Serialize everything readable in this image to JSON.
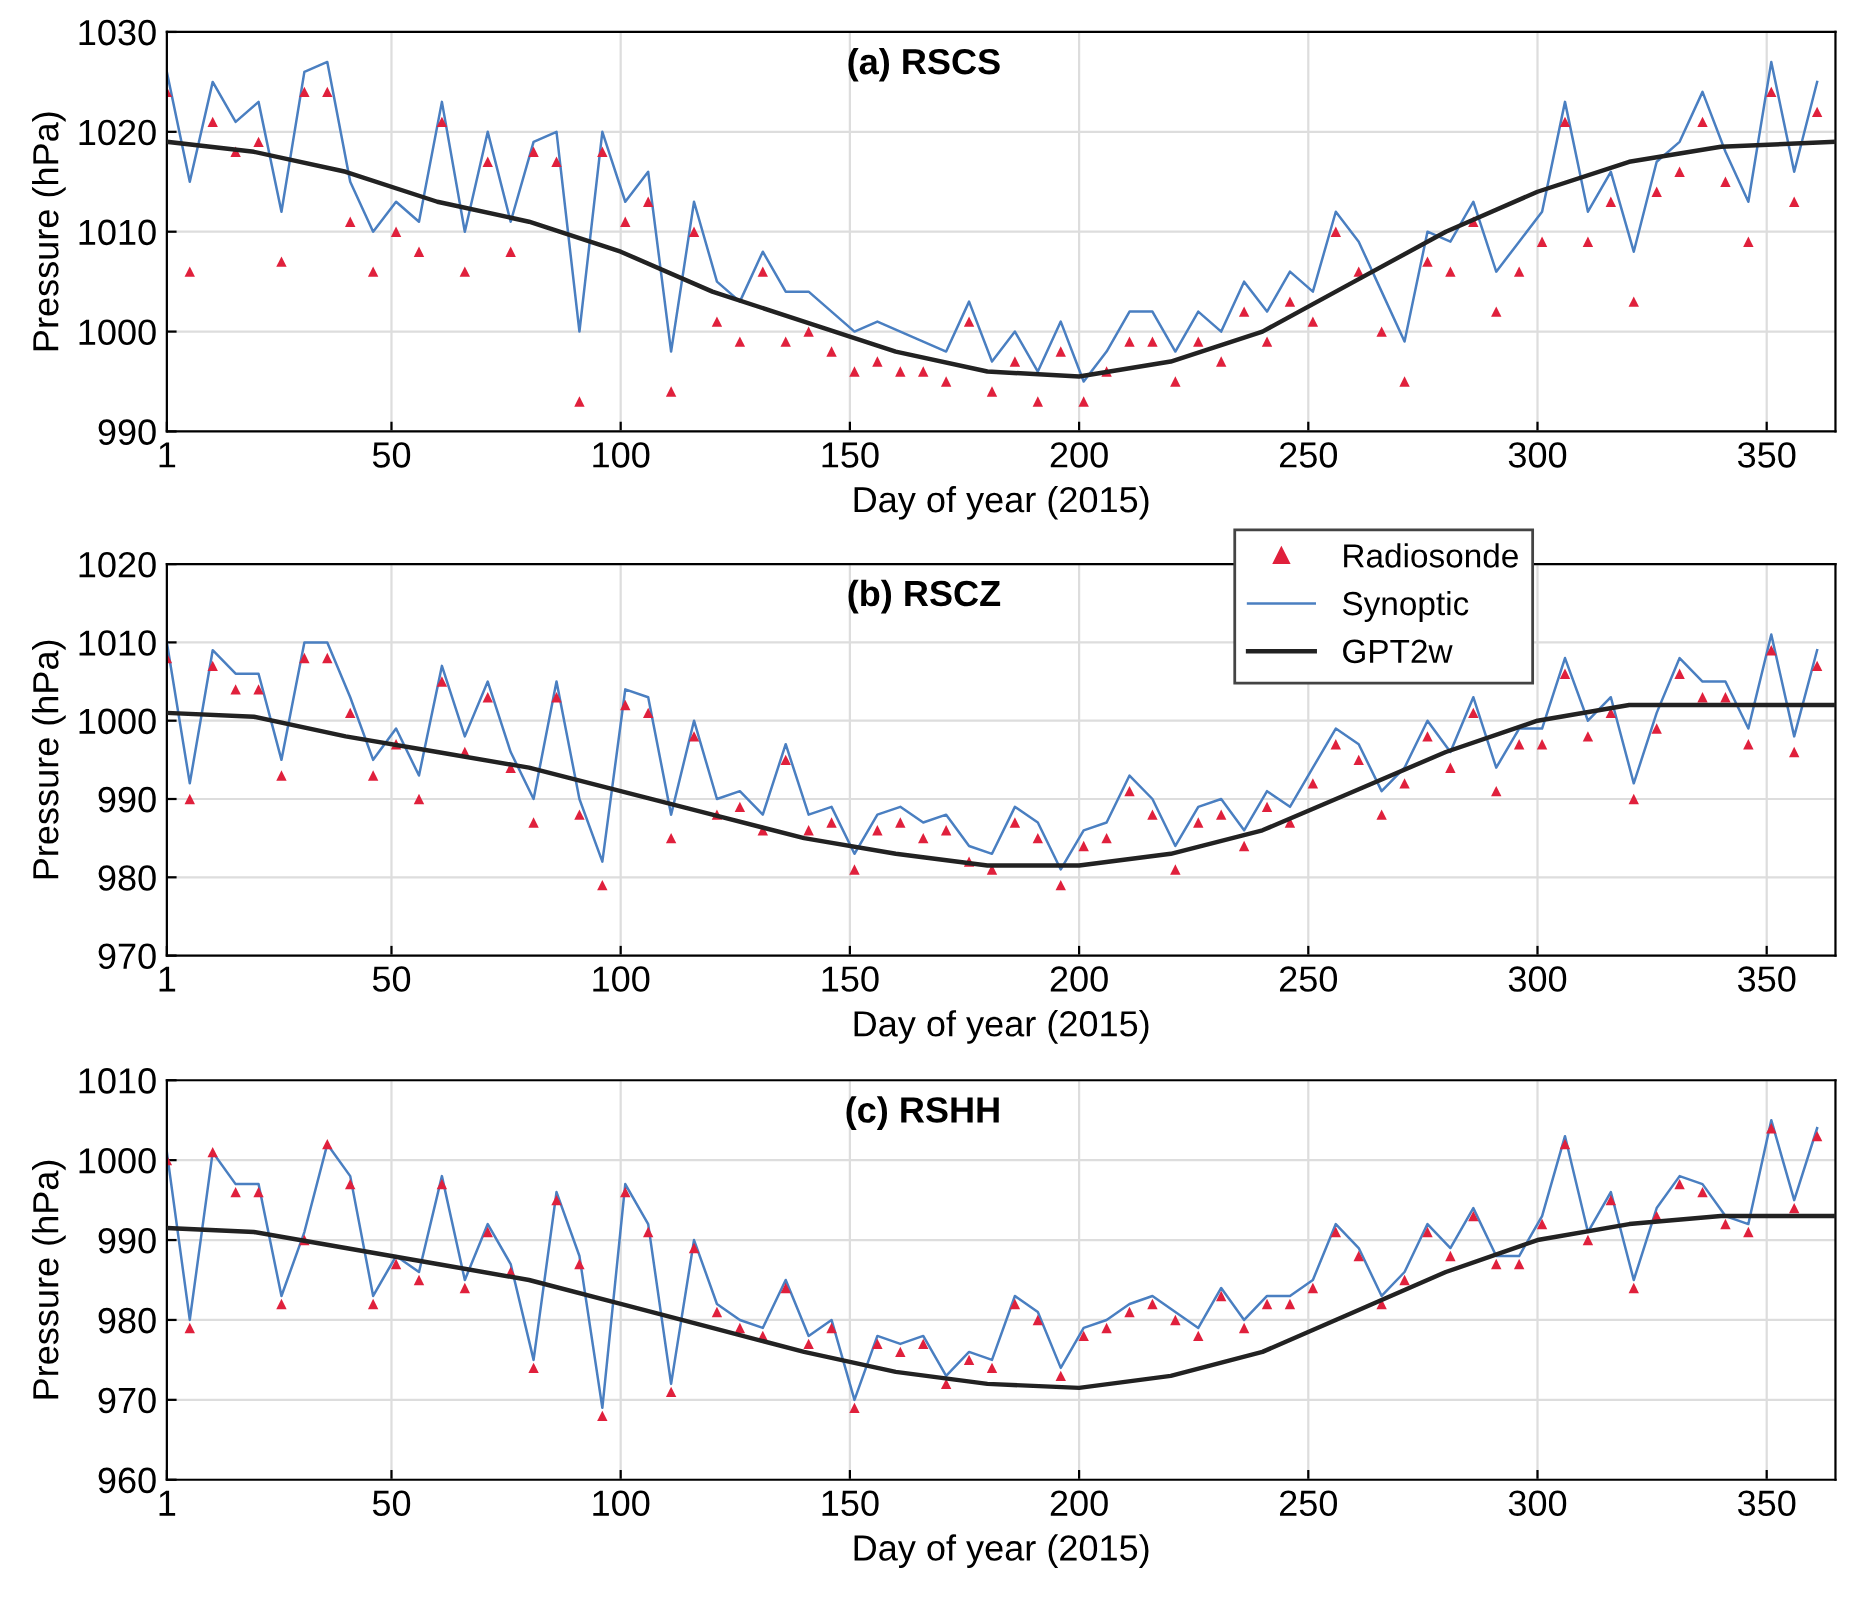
{
  "chart_data": [
    {
      "type": "line",
      "title": "(a) RSCS",
      "xlabel": "Day of year (2015)",
      "ylabel": "Pressure (hPa)",
      "x": [
        1,
        6,
        11,
        16,
        21,
        26,
        31,
        36,
        41,
        46,
        51,
        56,
        61,
        66,
        71,
        76,
        81,
        86,
        91,
        96,
        101,
        106,
        111,
        116,
        121,
        126,
        131,
        136,
        141,
        146,
        151,
        156,
        161,
        166,
        171,
        176,
        181,
        186,
        191,
        196,
        201,
        206,
        211,
        216,
        221,
        226,
        231,
        236,
        241,
        246,
        251,
        256,
        261,
        266,
        271,
        276,
        281,
        286,
        291,
        296,
        301,
        306,
        311,
        316,
        321,
        326,
        331,
        336,
        341,
        346,
        351,
        356,
        361
      ],
      "xlim": [
        1,
        365
      ],
      "xticks": [
        1,
        50,
        100,
        150,
        200,
        250,
        300,
        350
      ],
      "ylim": [
        990,
        1030
      ],
      "yticks": [
        990,
        1000,
        1010,
        1020,
        1030
      ],
      "grid": true,
      "series": [
        {
          "type": "line",
          "color": "#4a7fc1",
          "line_style": "solid",
          "values": [
            1026,
            1015,
            1025,
            1021,
            1023,
            1012,
            1026,
            1027,
            1015,
            1010,
            1013,
            1011,
            1023,
            1010,
            1020,
            1011,
            1019,
            1020,
            1000,
            1020,
            1013,
            1016,
            998,
            1013,
            1005,
            1003,
            1008,
            1004,
            1004,
            1002,
            1000,
            1001,
            1000,
            999,
            998,
            1003,
            997,
            1000,
            996,
            1001,
            995,
            998,
            1002,
            1002,
            998,
            1002,
            1000,
            1005,
            1002,
            1006,
            1004,
            1012,
            1009,
            1004,
            999,
            1010,
            1009,
            1013,
            1006,
            1009,
            1012,
            1023,
            1012,
            1016,
            1008,
            1017,
            1019,
            1024,
            1018,
            1013,
            1027,
            1016,
            1025
          ]
        },
        {
          "type": "line",
          "color": "#222222",
          "line_style": "solid",
          "x": [
            1,
            20,
            40,
            60,
            80,
            100,
            120,
            140,
            160,
            180,
            200,
            220,
            240,
            260,
            280,
            300,
            320,
            340,
            365
          ],
          "values": [
            1019,
            1018,
            1016,
            1013,
            1011,
            1008,
            1004,
            1001,
            998,
            996,
            995.5,
            997,
            1000,
            1005,
            1010,
            1014,
            1017,
            1018.5,
            1019
          ]
        },
        {
          "type": "scatter",
          "color": "#e0203c",
          "marker": "triangle",
          "values": [
            1024,
            1006,
            1021,
            1018,
            1019,
            1007,
            1024,
            1024,
            1011,
            1006,
            1010,
            1008,
            1021,
            1006,
            1017,
            1008,
            1018,
            1017,
            993,
            1018,
            1011,
            1013,
            994,
            1010,
            1001,
            999,
            1006,
            999,
            1000,
            998,
            996,
            997,
            996,
            996,
            995,
            1001,
            994,
            997,
            993,
            998,
            993,
            996,
            999,
            999,
            995,
            999,
            997,
            1002,
            999,
            1003,
            1001,
            1010,
            1006,
            1000,
            995,
            1007,
            1006,
            1011,
            1002,
            1006,
            1009,
            1021,
            1009,
            1013,
            1003,
            1014,
            1016,
            1021,
            1015,
            1009,
            1024,
            1013,
            1022
          ]
        }
      ]
    },
    {
      "type": "line",
      "title": "(b) RSCZ",
      "xlabel": "Day of year (2015)",
      "ylabel": "Pressure (hPa)",
      "x": [
        1,
        6,
        11,
        16,
        21,
        26,
        31,
        36,
        41,
        46,
        51,
        56,
        61,
        66,
        71,
        76,
        81,
        86,
        91,
        96,
        101,
        106,
        111,
        116,
        121,
        126,
        131,
        136,
        141,
        146,
        151,
        156,
        161,
        166,
        171,
        176,
        181,
        186,
        191,
        196,
        201,
        206,
        211,
        216,
        221,
        226,
        231,
        236,
        241,
        246,
        251,
        256,
        261,
        266,
        271,
        276,
        281,
        286,
        291,
        296,
        301,
        306,
        311,
        316,
        321,
        326,
        331,
        336,
        341,
        346,
        351,
        356,
        361
      ],
      "xlim": [
        1,
        365
      ],
      "xticks": [
        1,
        50,
        100,
        150,
        200,
        250,
        300,
        350
      ],
      "ylim": [
        970,
        1020
      ],
      "yticks": [
        970,
        980,
        990,
        1000,
        1010,
        1020
      ],
      "grid": true,
      "legend": "top",
      "series": [
        {
          "type": "scatter",
          "name": "Radiosonde",
          "color": "#e0203c",
          "marker": "triangle",
          "values": [
            1008,
            990,
            1007,
            1004,
            1004,
            993,
            1008,
            1008,
            1001,
            993,
            997,
            990,
            1005,
            996,
            1003,
            994,
            987,
            1003,
            988,
            979,
            1002,
            1001,
            985,
            998,
            988,
            989,
            986,
            995,
            986,
            987,
            981,
            986,
            987,
            985,
            986,
            982,
            981,
            987,
            985,
            979,
            984,
            985,
            991,
            988,
            981,
            987,
            988,
            984,
            989,
            987,
            992,
            997,
            995,
            988,
            992,
            998,
            994,
            1001,
            991,
            997,
            997,
            1006,
            998,
            1001,
            990,
            999,
            1006,
            1003,
            1003,
            997,
            1009,
            996,
            1007
          ]
        },
        {
          "type": "line",
          "name": "Synoptic",
          "color": "#4a7fc1",
          "line_style": "solid",
          "values": [
            1010,
            992,
            1009,
            1006,
            1006,
            995,
            1010,
            1010,
            1003,
            995,
            999,
            993,
            1007,
            998,
            1005,
            996,
            990,
            1005,
            990,
            982,
            1004,
            1003,
            988,
            1000,
            990,
            991,
            988,
            997,
            988,
            989,
            983,
            988,
            989,
            987,
            988,
            984,
            983,
            989,
            987,
            981,
            986,
            987,
            993,
            990,
            984,
            989,
            990,
            986,
            991,
            989,
            994,
            999,
            997,
            991,
            994,
            1000,
            996,
            1003,
            994,
            999,
            999,
            1008,
            1000,
            1003,
            992,
            1001,
            1008,
            1005,
            1005,
            999,
            1011,
            998,
            1009
          ]
        },
        {
          "type": "line",
          "name": "GPT2w",
          "color": "#222222",
          "line_style": "solid",
          "x": [
            1,
            20,
            40,
            60,
            80,
            100,
            120,
            140,
            160,
            180,
            200,
            220,
            240,
            260,
            280,
            300,
            320,
            340,
            365
          ],
          "values": [
            1001,
            1000.5,
            998,
            996,
            994,
            991,
            988,
            985,
            983,
            981.5,
            981.5,
            983,
            986,
            991,
            996,
            1000,
            1002,
            1002,
            1002
          ]
        }
      ]
    },
    {
      "type": "line",
      "title": "(c) RSHH",
      "xlabel": "Day of year (2015)",
      "ylabel": "Pressure (hPa)",
      "x": [
        1,
        6,
        11,
        16,
        21,
        26,
        31,
        36,
        41,
        46,
        51,
        56,
        61,
        66,
        71,
        76,
        81,
        86,
        91,
        96,
        101,
        106,
        111,
        116,
        121,
        126,
        131,
        136,
        141,
        146,
        151,
        156,
        161,
        166,
        171,
        176,
        181,
        186,
        191,
        196,
        201,
        206,
        211,
        216,
        221,
        226,
        231,
        236,
        241,
        246,
        251,
        256,
        261,
        266,
        271,
        276,
        281,
        286,
        291,
        296,
        301,
        306,
        311,
        316,
        321,
        326,
        331,
        336,
        341,
        346,
        351,
        356,
        361
      ],
      "xlim": [
        1,
        365
      ],
      "xticks": [
        1,
        50,
        100,
        150,
        200,
        250,
        300,
        350
      ],
      "ylim": [
        960,
        1010
      ],
      "yticks": [
        960,
        970,
        980,
        990,
        1000,
        1010
      ],
      "grid": true,
      "series": [
        {
          "type": "line",
          "color": "#4a7fc1",
          "line_style": "solid",
          "values": [
            1001,
            980,
            1001,
            997,
            997,
            983,
            991,
            1002,
            998,
            983,
            988,
            986,
            998,
            985,
            992,
            987,
            975,
            996,
            988,
            969,
            997,
            992,
            972,
            990,
            982,
            980,
            979,
            985,
            978,
            980,
            970,
            978,
            977,
            978,
            973,
            976,
            975,
            983,
            981,
            974,
            979,
            980,
            982,
            983,
            981,
            979,
            984,
            980,
            983,
            983,
            985,
            992,
            989,
            983,
            986,
            992,
            989,
            994,
            988,
            988,
            993,
            1003,
            991,
            996,
            985,
            994,
            998,
            997,
            993,
            992,
            1005,
            995,
            1004
          ]
        },
        {
          "type": "line",
          "color": "#222222",
          "line_style": "solid",
          "x": [
            1,
            20,
            40,
            60,
            80,
            100,
            120,
            140,
            160,
            180,
            200,
            220,
            240,
            260,
            280,
            300,
            320,
            340,
            365
          ],
          "values": [
            991.5,
            991,
            989,
            987,
            985,
            982,
            979,
            976,
            973.5,
            972,
            971.5,
            973,
            976,
            981,
            986,
            990,
            992,
            993,
            993
          ]
        },
        {
          "type": "scatter",
          "color": "#e0203c",
          "marker": "triangle",
          "values": [
            1000,
            979,
            1001,
            996,
            996,
            982,
            990,
            1002,
            997,
            982,
            987,
            985,
            997,
            984,
            991,
            986,
            974,
            995,
            987,
            968,
            996,
            991,
            971,
            989,
            981,
            979,
            978,
            984,
            977,
            979,
            969,
            977,
            976,
            977,
            972,
            975,
            974,
            982,
            980,
            973,
            978,
            979,
            981,
            982,
            980,
            978,
            983,
            979,
            982,
            982,
            984,
            991,
            988,
            982,
            985,
            991,
            988,
            993,
            987,
            987,
            992,
            1002,
            990,
            995,
            984,
            993,
            997,
            996,
            992,
            991,
            1004,
            994,
            1003
          ]
        }
      ]
    }
  ]
}
